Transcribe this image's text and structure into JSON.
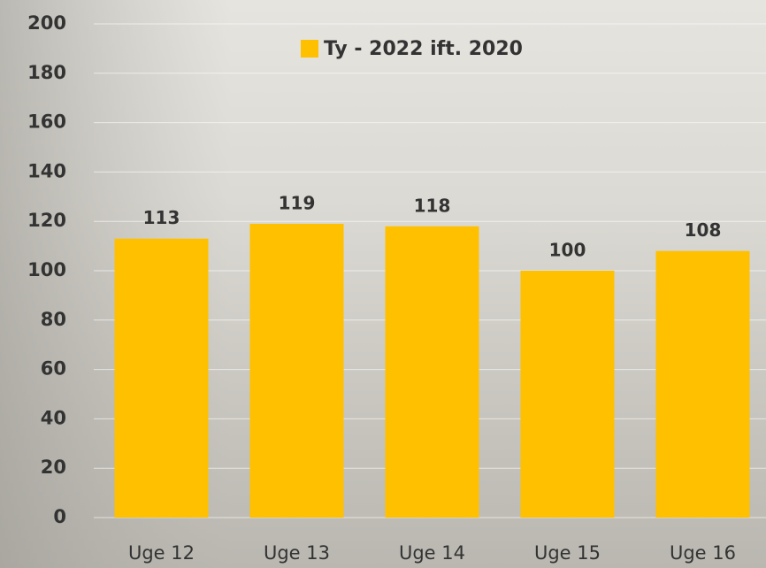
{
  "chart_data": {
    "type": "bar",
    "categories": [
      "Uge 12",
      "Uge 13",
      "Uge 14",
      "Uge 15",
      "Uge 16"
    ],
    "series": [
      {
        "name": "Ty - 2022 ift. 2020",
        "color": "#ffc000",
        "values": [
          113,
          119,
          118,
          100,
          108
        ]
      }
    ],
    "ylim": [
      0,
      200
    ],
    "yticks": [
      0,
      20,
      40,
      60,
      80,
      100,
      120,
      140,
      160,
      180,
      200
    ],
    "grid": true
  }
}
